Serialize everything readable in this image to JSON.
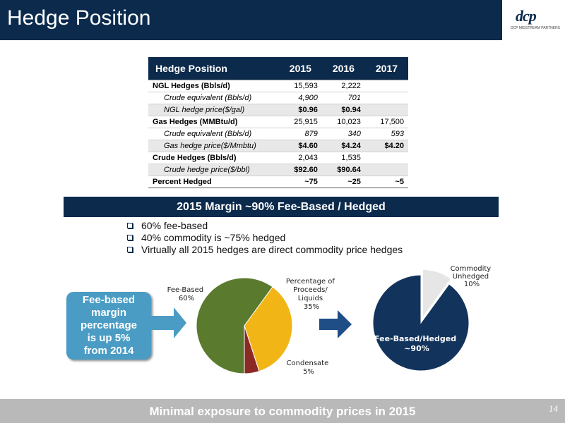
{
  "header": {
    "title": "Hedge Position",
    "logo": "dcp",
    "logo_subtitle": "DCP MIDSTREAM PARTNERS",
    "colors": {
      "navy": "#0b2a4c",
      "gray": "#b9b9b9"
    }
  },
  "table": {
    "headers": [
      "Hedge Position",
      "2015",
      "2016",
      "2017"
    ],
    "rows": [
      {
        "label": "NGL Hedges (Bbls/d)",
        "v2015": "15,593",
        "v2016": "2,222",
        "v2017": ""
      },
      {
        "label": "Crude equivalent (Bbls/d)",
        "v2015": "4,900",
        "v2016": "701",
        "v2017": ""
      },
      {
        "label": "NGL hedge price($/gal)",
        "v2015": "$0.96",
        "v2016": "$0.94",
        "v2017": ""
      },
      {
        "label": "Gas Hedges (MMBtu/d)",
        "v2015": "25,915",
        "v2016": "10,023",
        "v2017": "17,500"
      },
      {
        "label": "Crude equivalent (Bbls/d)",
        "v2015": "879",
        "v2016": "340",
        "v2017": "593"
      },
      {
        "label": "Gas hedge price($/Mmbtu)",
        "v2015": "$4.60",
        "v2016": "$4.24",
        "v2017": "$4.20"
      },
      {
        "label": "Crude Hedges (Bbls/d)",
        "v2015": "2,043",
        "v2016": "1,535",
        "v2017": ""
      },
      {
        "label": "Crude hedge price($/bbl)",
        "v2015": "$92.60",
        "v2016": "$90.64",
        "v2017": ""
      },
      {
        "label": "Percent Hedged",
        "v2015": "~75",
        "v2016": "~25",
        "v2017": "~5"
      }
    ]
  },
  "banner": {
    "text": "2015 Margin ~90% Fee-Based / Hedged"
  },
  "bullets": [
    "60% fee-based",
    "40% commodity is ~75% hedged",
    "Virtually all 2015 hedges are direct commodity price hedges"
  ],
  "callout": {
    "lines": [
      "Fee-based",
      "margin",
      "percentage",
      "is up 5%",
      "from 2014"
    ]
  },
  "chart_data": [
    {
      "type": "pie",
      "slices": [
        {
          "label_lines": [
            "Fee-Based",
            "60%"
          ],
          "value": 60,
          "color": "#5a7a2e"
        },
        {
          "label_lines": [
            "Percentage of",
            "Proceeds/",
            "Liquids",
            "35%"
          ],
          "value": 35,
          "color": "#f2b516"
        },
        {
          "label_lines": [
            "Condensate",
            "5%"
          ],
          "value": 5,
          "color": "#8b2a24"
        }
      ]
    },
    {
      "type": "pie",
      "slices": [
        {
          "label_lines": [
            "Fee-Based/Hedged",
            "~90%"
          ],
          "value": 90,
          "color": "#12335c"
        },
        {
          "label_lines": [
            "Commodity",
            "Unhedged",
            "10%"
          ],
          "value": 10,
          "color": "#e6e6e6"
        }
      ]
    }
  ],
  "footer": {
    "text": "Minimal exposure to commodity prices in 2015",
    "page_number": "14"
  }
}
